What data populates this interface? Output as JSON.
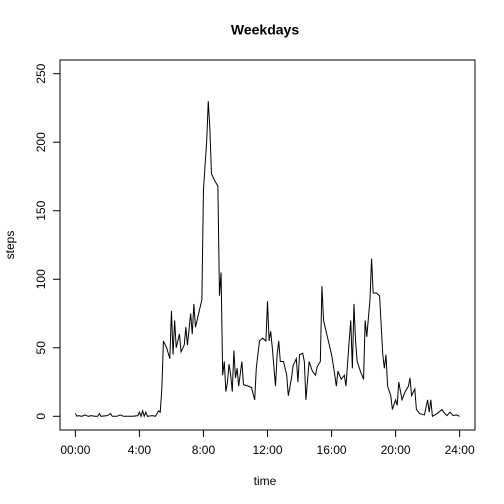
{
  "chart_data": {
    "type": "line",
    "title": "Weekdays",
    "x_label": "time",
    "y_label": "steps",
    "color": "#000000",
    "x": [
      0,
      0.1,
      0.2,
      0.4,
      0.6,
      0.8,
      1.0,
      1.2,
      1.4,
      1.5,
      1.6,
      2.0,
      2.2,
      2.3,
      2.6,
      2.8,
      3.0,
      3.3,
      3.6,
      3.9,
      4.0,
      4.1,
      4.2,
      4.3,
      4.4,
      4.5,
      4.8,
      5.0,
      5.2,
      5.3,
      5.4,
      5.5,
      5.7,
      5.9,
      6.0,
      6.1,
      6.2,
      6.3,
      6.5,
      6.6,
      6.8,
      6.9,
      7.0,
      7.2,
      7.3,
      7.4,
      7.5,
      7.7,
      7.8,
      7.9,
      8.0,
      8.1,
      8.2,
      8.3,
      8.4,
      8.5,
      8.7,
      8.9,
      9.0,
      9.1,
      9.2,
      9.3,
      9.4,
      9.5,
      9.6,
      9.7,
      9.8,
      9.9,
      10.0,
      10.1,
      10.2,
      10.4,
      10.5,
      10.8,
      11.0,
      11.2,
      11.3,
      11.5,
      11.7,
      11.9,
      12.0,
      12.1,
      12.2,
      12.3,
      12.5,
      12.6,
      12.7,
      12.8,
      13.0,
      13.2,
      13.3,
      13.5,
      13.6,
      13.8,
      13.9,
      14.0,
      14.2,
      14.3,
      14.4,
      14.6,
      14.8,
      15.0,
      15.1,
      15.3,
      15.4,
      15.5,
      15.7,
      15.9,
      16.0,
      16.1,
      16.3,
      16.4,
      16.6,
      16.8,
      16.9,
      17.0,
      17.1,
      17.2,
      17.3,
      17.4,
      17.5,
      17.6,
      17.8,
      18.0,
      18.1,
      18.2,
      18.4,
      18.5,
      18.6,
      18.8,
      19.0,
      19.2,
      19.3,
      19.4,
      19.5,
      19.7,
      19.8,
      20.0,
      20.1,
      20.2,
      20.4,
      20.6,
      20.8,
      20.9,
      21.0,
      21.2,
      21.3,
      21.5,
      21.8,
      22.0,
      22.1,
      22.2,
      22.3,
      22.6,
      22.9,
      23.0,
      23.2,
      23.4,
      23.6,
      23.8,
      24.0
    ],
    "values": [
      2,
      0,
      0.5,
      0,
      1,
      0,
      0.5,
      0,
      0,
      2,
      0,
      0.5,
      2,
      0,
      0,
      1,
      0,
      0,
      0,
      0.5,
      3,
      0,
      4,
      0,
      3,
      0,
      0.5,
      0,
      4,
      3,
      20,
      55,
      50,
      42,
      77,
      45,
      70,
      50,
      60,
      47,
      52,
      65,
      52,
      75,
      60,
      82,
      65,
      75,
      80,
      85,
      165,
      183,
      200,
      230,
      210,
      177,
      172,
      168,
      88,
      105,
      30,
      40,
      18,
      25,
      38,
      30,
      18,
      48,
      28,
      35,
      22,
      40,
      23,
      22,
      21,
      12,
      35,
      55,
      57,
      55,
      84,
      55,
      62,
      50,
      22,
      45,
      55,
      40,
      40,
      30,
      15,
      28,
      37,
      42,
      25,
      45,
      46,
      40,
      12,
      40,
      33,
      30,
      36,
      40,
      95,
      70,
      60,
      50,
      45,
      38,
      22,
      33,
      27,
      30,
      22,
      38,
      55,
      70,
      35,
      82,
      55,
      40,
      33,
      27,
      70,
      58,
      85,
      115,
      90,
      90,
      88,
      45,
      35,
      45,
      22,
      15,
      5,
      12,
      8,
      25,
      12,
      18,
      22,
      28,
      15,
      20,
      5,
      2,
      1,
      12,
      3,
      12,
      0,
      2,
      5,
      3,
      0.5,
      3,
      0.5,
      1,
      0
    ],
    "xlim": [
      -0.96,
      24.96
    ],
    "xticks": [
      {
        "value": 0,
        "label": "00:00"
      },
      {
        "value": 4,
        "label": "4:00"
      },
      {
        "value": 8,
        "label": "8:00"
      },
      {
        "value": 12,
        "label": "12:00"
      },
      {
        "value": 16,
        "label": "16:00"
      },
      {
        "value": 20,
        "label": "20:00"
      },
      {
        "value": 24,
        "label": "24:00"
      }
    ],
    "ylim": [
      -10,
      260
    ],
    "yticks": [
      0,
      50,
      100,
      150,
      200,
      250
    ]
  }
}
